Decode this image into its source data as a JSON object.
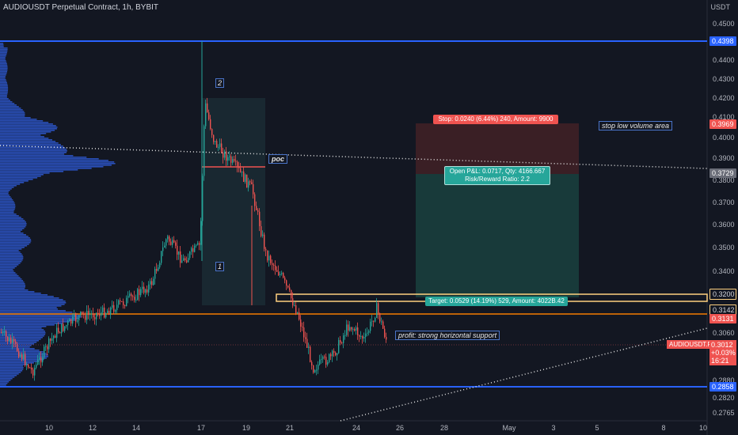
{
  "header": {
    "title": "AUDIOUSDT Perpetual Contract, 1h, BYBIT"
  },
  "price_axis": {
    "unit": "USDT",
    "ticks": [
      "0.4500",
      "0.4400",
      "0.4300",
      "0.4200",
      "0.4100",
      "0.4000",
      "0.3900",
      "0.3800",
      "0.3700",
      "0.3600",
      "0.3500",
      "0.3400",
      "0.3300",
      "0.3200",
      "0.3060",
      "0.2940",
      "0.2880",
      "0.2820",
      "0.2765"
    ],
    "tags": {
      "t1": "0.4398",
      "t2": "0.3969",
      "t3": "0.3729",
      "t4": "0.3200",
      "t5": "0.3142",
      "t6": "0.3131",
      "t7": "0.2858"
    }
  },
  "time_axis": [
    "10",
    "12",
    "14",
    "17",
    "19",
    "21",
    "24",
    "26",
    "28",
    "May",
    "3",
    "5",
    "8",
    "10"
  ],
  "annotations": {
    "poc": "poc",
    "wave1": "1",
    "wave2": "2",
    "stop_note": "stop low volume area",
    "profit_note": "profit: strong horizontal support"
  },
  "position": {
    "stop": "Stop: 0.0240 (6.44%) 240, Amount: 9900",
    "open_pl": "Open P&L: 0.0717, Qty: 4166.667",
    "ratio": "Risk/Reward Ratio: 2.2",
    "target": "Target: 0.0529 (14.19%) 529, Amount: 4022B.42"
  },
  "current_price": {
    "symbol": "AUDIOUSDT.P",
    "price": "0.3012",
    "change": "+0.03%",
    "countdown": "16:21"
  },
  "colors": {
    "background": "#131722",
    "up": "#26a69a",
    "down": "#ef5350",
    "level_blue": "#2962ff",
    "volume_profile": "#2f5bd6"
  }
}
